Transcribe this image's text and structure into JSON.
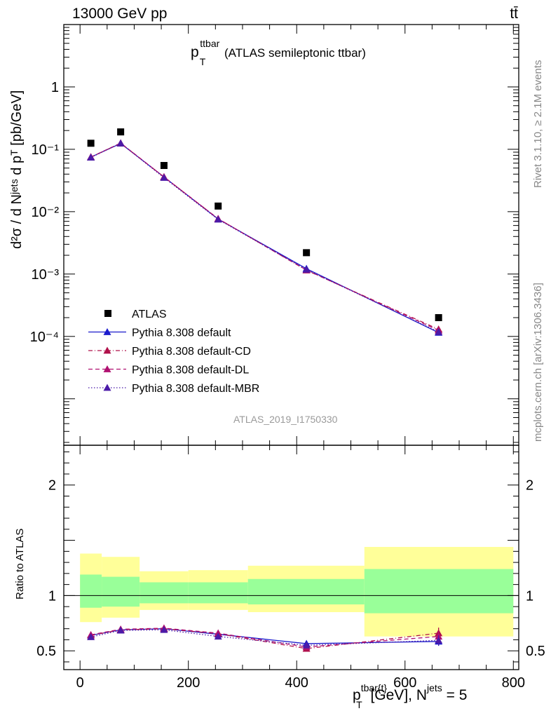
{
  "header": {
    "energy_label": "13000 GeV pp",
    "process_label": "tt̄"
  },
  "side": {
    "rivet_label": "Rivet 3.1.10, ≥ 2.1M events",
    "site_label": "mcplots.cern.ch [arXiv:1306.3436]"
  },
  "plot_title": {
    "main": "p",
    "sup": "ttbar",
    "sub": "T",
    "rest": " (ATLAS semileptonic ttbar)"
  },
  "analysis_id": "ATLAS_2019_I1750330",
  "y_axis_label": "d²σ / d Nʲᵉᵗˢ d pᵀ",
  "y_axis_unit": "[pb/GeV]",
  "ratio_ylabel": "Ratio to ATLAS",
  "x_axis_label": {
    "main": "p",
    "sup": "tbar{t}",
    "sub": "T",
    "rest": " [GeV], N",
    "sup2": "jets",
    "tail": " = 5"
  },
  "colors": {
    "data": "#000000",
    "default": "#1a1acc",
    "cd": "#b0104a",
    "dl": "#b01070",
    "mbr": "#4b1aa8",
    "band_outer": "#ffff99",
    "band_inner": "#99ff99"
  },
  "chart_data": [
    {
      "type": "scatter",
      "panel": "main",
      "y_scale": "log",
      "xlim": [
        -30,
        810
      ],
      "ylim": [
        1.8e-06,
        10
      ],
      "x_ticks": [
        "0",
        "200",
        "400",
        "600",
        "800"
      ],
      "y_ticks": [
        "10⁻⁴",
        "10⁻³",
        "10⁻²",
        "10⁻¹",
        "1"
      ],
      "legend_position": "center-left",
      "series": [
        {
          "name": "ATLAS",
          "key": "data",
          "marker": "square",
          "x": [
            20,
            75,
            155,
            255,
            418,
            662
          ],
          "y": [
            0.125,
            0.19,
            0.055,
            0.0123,
            0.0022,
            0.0002
          ]
        },
        {
          "name": "Pythia 8.308 default",
          "key": "default",
          "line": "solid",
          "x": [
            20,
            75,
            155,
            255,
            418,
            662
          ],
          "y": [
            0.075,
            0.124,
            0.036,
            0.0076,
            0.00122,
            0.000115
          ]
        },
        {
          "name": "Pythia 8.308 default-CD",
          "key": "cd",
          "line": "dashdot",
          "x": [
            20,
            75,
            155,
            255,
            418,
            662
          ],
          "y": [
            0.075,
            0.125,
            0.036,
            0.0077,
            0.00115,
            0.00013
          ]
        },
        {
          "name": "Pythia 8.308 default-DL",
          "key": "dl",
          "line": "dashed",
          "x": [
            20,
            75,
            155,
            255,
            418,
            662
          ],
          "y": [
            0.075,
            0.126,
            0.036,
            0.0077,
            0.00116,
            0.000125
          ]
        },
        {
          "name": "Pythia 8.308 default-MBR",
          "key": "mbr",
          "line": "dotted",
          "x": [
            20,
            75,
            155,
            255,
            418,
            662
          ],
          "y": [
            0.074,
            0.125,
            0.035,
            0.0075,
            0.00118,
            0.000118
          ]
        }
      ]
    },
    {
      "type": "line",
      "panel": "ratio",
      "xlim": [
        -30,
        810
      ],
      "ylim": [
        0.33,
        2.36
      ],
      "y_ticks": [
        "0.5",
        "1",
        "2"
      ],
      "reference_line": 1,
      "bands": [
        {
          "x0": 0,
          "x1": 40,
          "outer": [
            0.76,
            1.38
          ],
          "inner": [
            0.89,
            1.19
          ]
        },
        {
          "x0": 40,
          "x1": 110,
          "outer": [
            0.8,
            1.35
          ],
          "inner": [
            0.9,
            1.17
          ]
        },
        {
          "x0": 110,
          "x1": 200,
          "outer": [
            0.87,
            1.22
          ],
          "inner": [
            0.93,
            1.12
          ]
        },
        {
          "x0": 200,
          "x1": 310,
          "outer": [
            0.87,
            1.23
          ],
          "inner": [
            0.93,
            1.12
          ]
        },
        {
          "x0": 310,
          "x1": 525,
          "outer": [
            0.85,
            1.27
          ],
          "inner": [
            0.92,
            1.15
          ]
        },
        {
          "x0": 525,
          "x1": 800,
          "outer": [
            0.63,
            1.44
          ],
          "inner": [
            0.84,
            1.24
          ]
        }
      ],
      "series": [
        {
          "name": "Pythia 8.308 default",
          "key": "default",
          "line": "solid",
          "x": [
            20,
            75,
            155,
            255,
            418,
            662
          ],
          "y": [
            0.64,
            0.69,
            0.7,
            0.65,
            0.565,
            0.585
          ],
          "err": [
            0.01,
            0.01,
            0.01,
            0.01,
            0.02,
            0.04
          ]
        },
        {
          "name": "Pythia 8.308 default-CD",
          "key": "cd",
          "line": "dashdot",
          "x": [
            20,
            75,
            155,
            255,
            418,
            662
          ],
          "y": [
            0.64,
            0.69,
            0.7,
            0.655,
            0.52,
            0.66
          ],
          "err": [
            0.01,
            0.01,
            0.01,
            0.01,
            0.015,
            0.05
          ]
        },
        {
          "name": "Pythia 8.308 default-DL",
          "key": "dl",
          "line": "dashed",
          "x": [
            20,
            75,
            155,
            255,
            418,
            662
          ],
          "y": [
            0.645,
            0.695,
            0.705,
            0.66,
            0.535,
            0.63
          ],
          "err": [
            0.01,
            0.01,
            0.01,
            0.01,
            0.015,
            0.05
          ]
        },
        {
          "name": "Pythia 8.308 default-MBR",
          "key": "mbr",
          "line": "dotted",
          "x": [
            20,
            75,
            155,
            255,
            418,
            662
          ],
          "y": [
            0.625,
            0.685,
            0.69,
            0.63,
            0.55,
            0.595
          ],
          "err": [
            0.01,
            0.01,
            0.01,
            0.01,
            0.02,
            0.045
          ]
        }
      ]
    }
  ]
}
